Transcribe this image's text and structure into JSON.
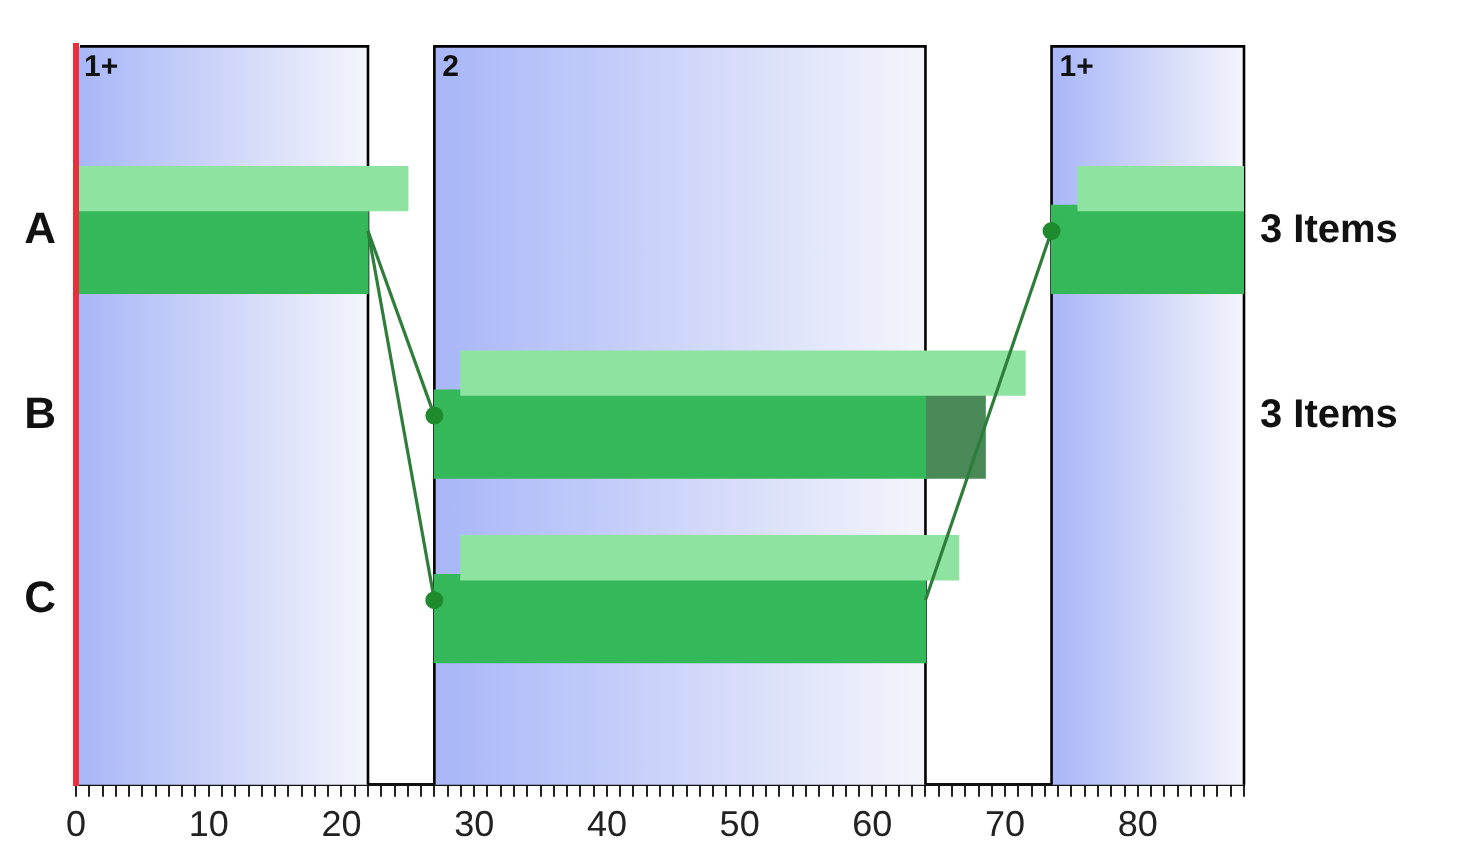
{
  "chart_data": {
    "type": "bar",
    "orientation": "horizontal",
    "categories": [
      "A",
      "B",
      "C"
    ],
    "series": [
      {
        "color": "#8fe3a0",
        "base": [
          0,
          29,
          29
        ],
        "values": [
          25,
          42.5,
          37.5
        ]
      },
      {
        "color": "#8fe3a0",
        "base": [
          75.5,
          null,
          null
        ],
        "values": [
          12.5,
          null,
          null
        ]
      },
      {
        "color": "#34b85a",
        "base": [
          0,
          27,
          27
        ],
        "values": [
          22,
          37,
          37
        ]
      },
      {
        "color": "#34b85a",
        "base": [
          73.5,
          null,
          null
        ],
        "values": [
          14.5,
          null,
          null
        ]
      },
      {
        "color": "#4a8a58",
        "base": [
          null,
          64,
          null
        ],
        "values": [
          null,
          4.5,
          null
        ]
      }
    ],
    "xlim": [
      0,
      88
    ],
    "xticks": [
      0,
      {
        "value": 1,
        "label": null
      },
      {
        "value": 2,
        "label": null
      },
      {
        "value": 3,
        "label": null
      },
      {
        "value": 4,
        "label": null
      },
      {
        "value": 5,
        "label": null
      },
      {
        "value": 6,
        "label": null
      },
      {
        "value": 7,
        "label": null
      },
      {
        "value": 8,
        "label": null
      },
      {
        "value": 9,
        "label": null
      },
      10,
      {
        "value": 11,
        "label": null
      },
      {
        "value": 12,
        "label": null
      },
      {
        "value": 13,
        "label": null
      },
      {
        "value": 14,
        "label": null
      },
      {
        "value": 15,
        "label": null
      },
      {
        "value": 16,
        "label": null
      },
      {
        "value": 17,
        "label": null
      },
      {
        "value": 18,
        "label": null
      },
      {
        "value": 19,
        "label": null
      },
      20,
      {
        "value": 21,
        "label": null
      },
      {
        "value": 22,
        "label": null
      },
      {
        "value": 23,
        "label": null
      },
      {
        "value": 24,
        "label": null
      },
      {
        "value": 25,
        "label": null
      },
      {
        "value": 26,
        "label": null
      },
      {
        "value": 27,
        "label": null
      },
      {
        "value": 28,
        "label": null
      },
      {
        "value": 29,
        "label": null
      },
      30,
      {
        "value": 31,
        "label": null
      },
      {
        "value": 32,
        "label": null
      },
      {
        "value": 33,
        "label": null
      },
      {
        "value": 34,
        "label": null
      },
      {
        "value": 35,
        "label": null
      },
      {
        "value": 36,
        "label": null
      },
      {
        "value": 37,
        "label": null
      },
      {
        "value": 38,
        "label": null
      },
      {
        "value": 39,
        "label": null
      },
      40,
      {
        "value": 41,
        "label": null
      },
      {
        "value": 42,
        "label": null
      },
      {
        "value": 43,
        "label": null
      },
      {
        "value": 44,
        "label": null
      },
      {
        "value": 45,
        "label": null
      },
      {
        "value": 46,
        "label": null
      },
      {
        "value": 47,
        "label": null
      },
      {
        "value": 48,
        "label": null
      },
      {
        "value": 49,
        "label": null
      },
      50,
      {
        "value": 51,
        "label": null
      },
      {
        "value": 52,
        "label": null
      },
      {
        "value": 53,
        "label": null
      },
      {
        "value": 54,
        "label": null
      },
      {
        "value": 55,
        "label": null
      },
      {
        "value": 56,
        "label": null
      },
      {
        "value": 57,
        "label": null
      },
      {
        "value": 58,
        "label": null
      },
      {
        "value": 59,
        "label": null
      },
      60,
      {
        "value": 61,
        "label": null
      },
      {
        "value": 62,
        "label": null
      },
      {
        "value": 63,
        "label": null
      },
      {
        "value": 64,
        "label": null
      },
      {
        "value": 65,
        "label": null
      },
      {
        "value": 66,
        "label": null
      },
      {
        "value": 67,
        "label": null
      },
      {
        "value": 68,
        "label": null
      },
      {
        "value": 69,
        "label": null
      },
      70,
      {
        "value": 71,
        "label": null
      },
      {
        "value": 72,
        "label": null
      },
      {
        "value": 73,
        "label": null
      },
      {
        "value": 74,
        "label": null
      },
      {
        "value": 75,
        "label": null
      },
      {
        "value": 76,
        "label": null
      },
      {
        "value": 77,
        "label": null
      },
      {
        "value": 78,
        "label": null
      },
      {
        "value": 79,
        "label": null
      },
      80,
      {
        "value": 81,
        "label": null
      },
      {
        "value": 82,
        "label": null
      },
      {
        "value": 83,
        "label": null
      },
      {
        "value": 84,
        "label": null
      },
      {
        "value": 85,
        "label": null
      },
      {
        "value": 86,
        "label": null
      },
      {
        "value": 87,
        "label": null
      },
      {
        "value": 88,
        "label": null
      }
    ],
    "bands": [
      {
        "axis": "x",
        "from": 0,
        "to": 22,
        "label": "1+",
        "color": "#a8b6f8"
      },
      {
        "axis": "x",
        "from": 27,
        "to": 64,
        "label": "2",
        "color": "#a8b6f8"
      },
      {
        "axis": "x",
        "from": 73.5,
        "to": 88,
        "label": "1+",
        "color": "#a8b6f8"
      }
    ],
    "annotations": [
      "3 Items",
      "3 Items"
    ],
    "grid": false,
    "legend": false
  }
}
